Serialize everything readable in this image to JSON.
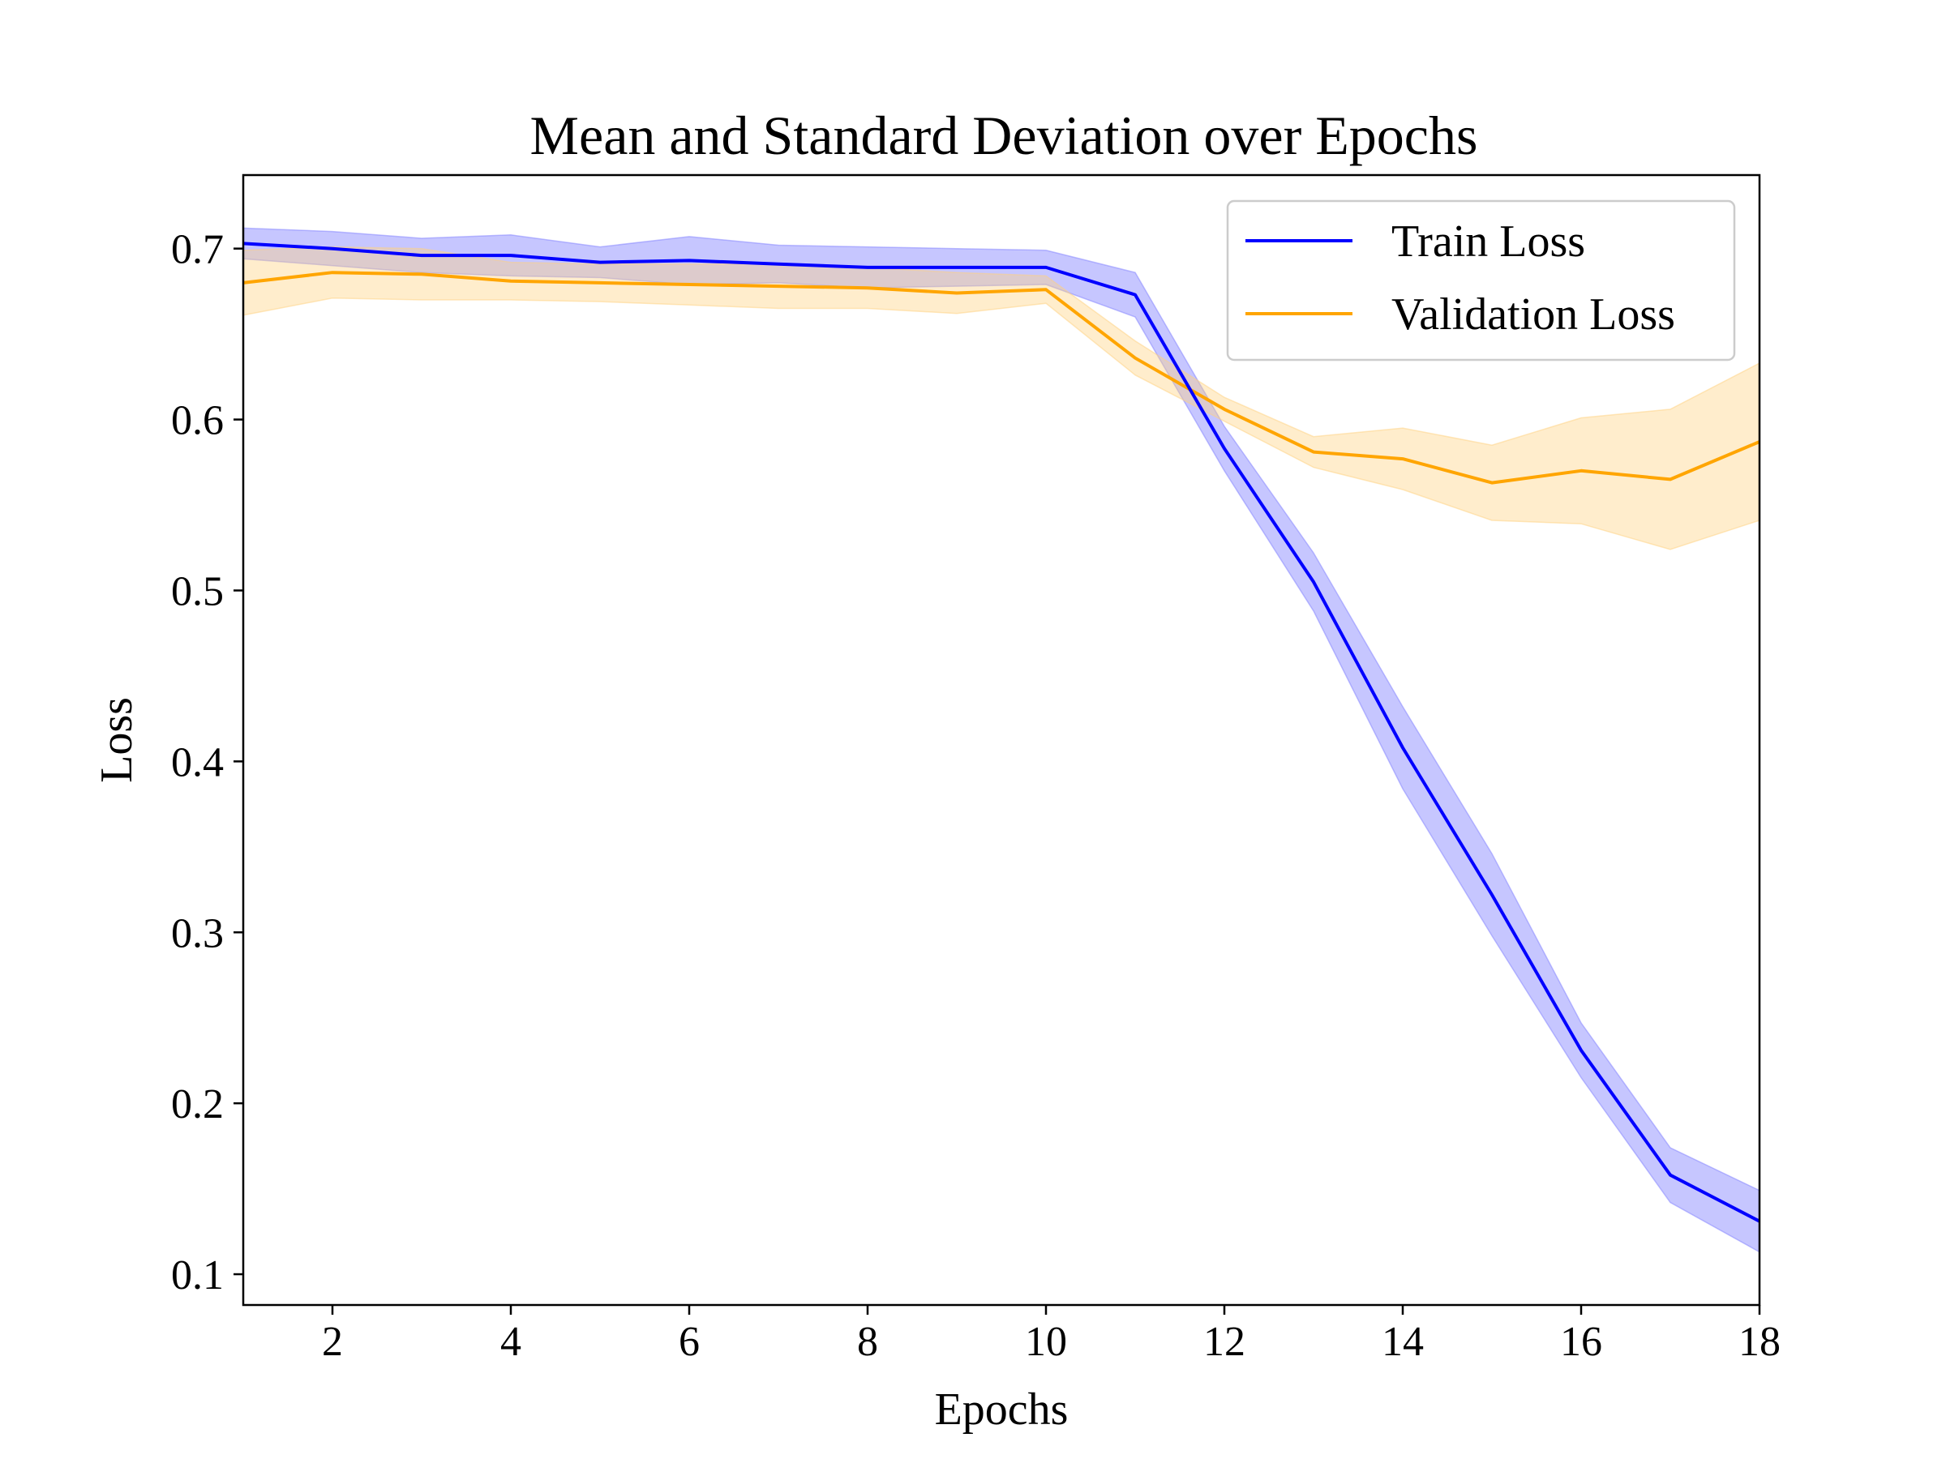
{
  "chart_data": {
    "type": "line",
    "title": "Mean and Standard Deviation over Epochs",
    "xlabel": "Epochs",
    "ylabel": "Loss",
    "xlim": [
      1,
      18
    ],
    "ylim": [
      0.082,
      0.743
    ],
    "xticks": [
      2,
      4,
      6,
      8,
      10,
      12,
      14,
      16,
      18
    ],
    "yticks": [
      0.1,
      0.2,
      0.3,
      0.4,
      0.5,
      0.6,
      0.7
    ],
    "grid": false,
    "legend": "top-right",
    "x": [
      1,
      2,
      3,
      4,
      5,
      6,
      7,
      8,
      9,
      10,
      11,
      12,
      13,
      14,
      15,
      16,
      17,
      18
    ],
    "series": [
      {
        "name": "Train Loss",
        "color": "#0000ff",
        "band_color": "#8080ff",
        "values": [
          0.703,
          0.7,
          0.696,
          0.696,
          0.692,
          0.693,
          0.691,
          0.689,
          0.689,
          0.689,
          0.673,
          0.583,
          0.505,
          0.408,
          0.322,
          0.231,
          0.158,
          0.131
        ],
        "std": [
          0.009,
          0.01,
          0.01,
          0.012,
          0.009,
          0.014,
          0.011,
          0.012,
          0.011,
          0.01,
          0.013,
          0.013,
          0.017,
          0.024,
          0.024,
          0.016,
          0.016,
          0.018
        ]
      },
      {
        "name": "Validation Loss",
        "color": "#ffa500",
        "band_color": "#ffd27f",
        "values": [
          0.68,
          0.686,
          0.685,
          0.681,
          0.68,
          0.679,
          0.678,
          0.677,
          0.674,
          0.676,
          0.636,
          0.606,
          0.581,
          0.577,
          0.563,
          0.57,
          0.565,
          0.587
        ],
        "std": [
          0.019,
          0.015,
          0.015,
          0.011,
          0.011,
          0.012,
          0.013,
          0.012,
          0.012,
          0.008,
          0.01,
          0.007,
          0.009,
          0.018,
          0.022,
          0.031,
          0.041,
          0.046
        ]
      }
    ]
  }
}
